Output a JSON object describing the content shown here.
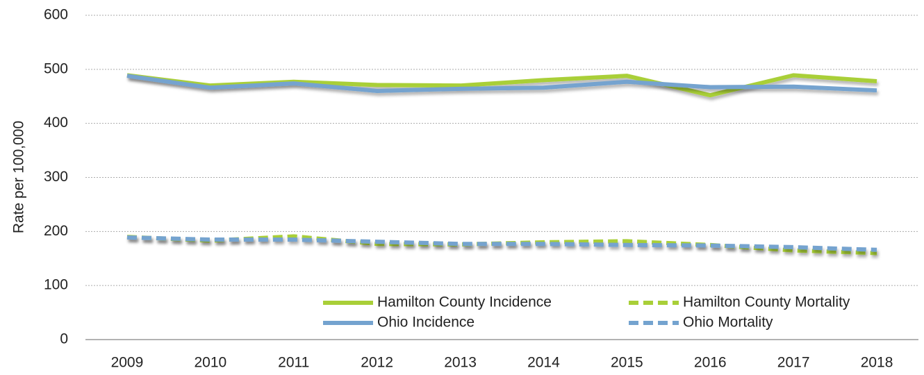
{
  "chart_data": {
    "type": "line",
    "y_label": "Rate per 100,000",
    "categories": [
      "2009",
      "2010",
      "2011",
      "2012",
      "2013",
      "2014",
      "2015",
      "2016",
      "2017",
      "2018"
    ],
    "series": [
      {
        "name": "Hamilton County Incidence",
        "color": "#a9cf38",
        "dashed": false,
        "values": [
          489,
          470,
          477,
          471,
          470,
          480,
          488,
          452,
          489,
          478
        ]
      },
      {
        "name": "Hamilton County Mortality",
        "color": "#a9cf38",
        "dashed": true,
        "values": [
          190,
          183,
          191,
          177,
          176,
          180,
          182,
          175,
          165,
          160
        ]
      },
      {
        "name": "Ohio Incidence",
        "color": "#74a3cf",
        "dashed": false,
        "values": [
          488,
          466,
          474,
          460,
          464,
          466,
          477,
          467,
          468,
          461
        ]
      },
      {
        "name": "Ohio Mortality",
        "color": "#74a3cf",
        "dashed": true,
        "values": [
          189,
          185,
          185,
          181,
          177,
          177,
          175,
          174,
          171,
          166
        ]
      }
    ],
    "ylim": [
      0,
      600
    ],
    "yticks": [
      0,
      100,
      200,
      300,
      400,
      500,
      600
    ],
    "grid": true,
    "legend": "lower right"
  }
}
